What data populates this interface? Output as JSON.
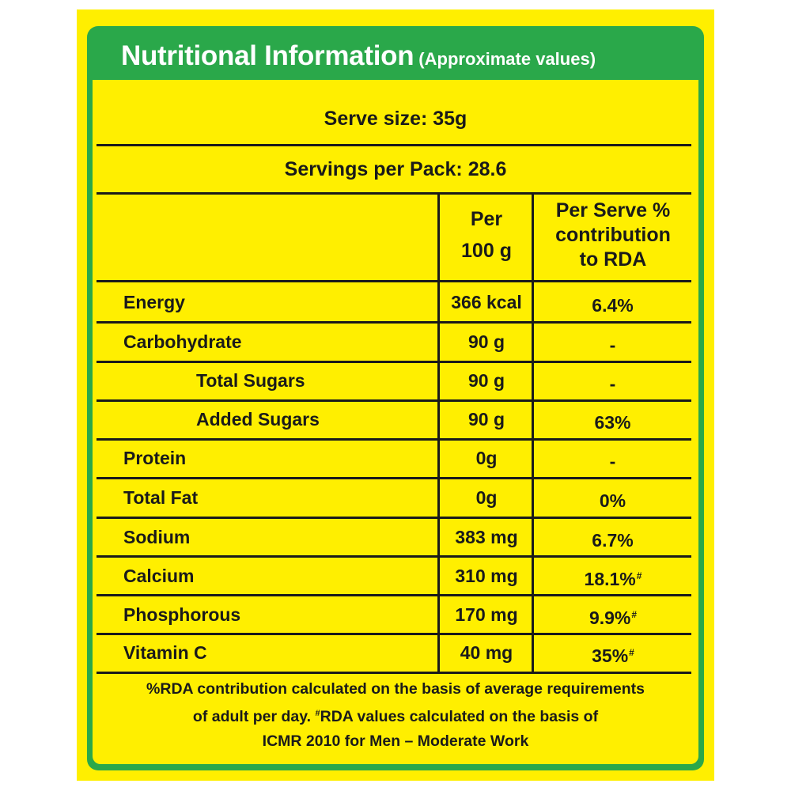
{
  "label": {
    "title": "Nutritional Information",
    "title_note": "(Approximate values)",
    "serve_size": "Serve size: 35g",
    "servings_per_pack": "Servings per Pack: 28.6",
    "columns": {
      "per_100g": "Per 100 g",
      "per_100g_line1": "Per",
      "per_100g_line2": "100 g",
      "rda_line1": "Per Serve %",
      "rda_line2": "contribution",
      "rda_line3": "to RDA"
    },
    "rows": [
      {
        "name": "Energy",
        "per_100g": "366 kcal",
        "rda": "6.4%",
        "rda_mark": ""
      },
      {
        "name": "Carbohydrate",
        "per_100g": "90 g",
        "rda": "-",
        "rda_mark": ""
      },
      {
        "name": "Total Sugars",
        "per_100g": "90 g",
        "rda": "-",
        "rda_mark": ""
      },
      {
        "name": "Added Sugars",
        "per_100g": "90 g",
        "rda": "63%",
        "rda_mark": ""
      },
      {
        "name": "Protein",
        "per_100g": "0g",
        "rda": "-",
        "rda_mark": ""
      },
      {
        "name": "Total Fat",
        "per_100g": "0g",
        "rda": "0%",
        "rda_mark": ""
      },
      {
        "name": "Sodium",
        "per_100g": "383 mg",
        "rda": "6.7%",
        "rda_mark": ""
      },
      {
        "name": "Calcium",
        "per_100g": "310 mg",
        "rda": "18.1%",
        "rda_mark": "#"
      },
      {
        "name": "Phosphorous",
        "per_100g": "170 mg",
        "rda": "9.9%",
        "rda_mark": "#"
      },
      {
        "name": "Vitamin C",
        "per_100g": "40 mg",
        "rda": "35%",
        "rda_mark": "#"
      }
    ],
    "footnote_line1": "%RDA contribution calculated on the basis of average requirements",
    "footnote_line2_a": "of adult per day.",
    "footnote_line2_mark": "#",
    "footnote_line2_b": "RDA values calculated on the basis of",
    "footnote_line3": "ICMR 2010 for Men – Moderate Work"
  },
  "colors": {
    "label_yellow": "#ffef00",
    "header_green": "#2aa84a",
    "text": "#1a1a1a",
    "title_text": "#ffffff"
  }
}
